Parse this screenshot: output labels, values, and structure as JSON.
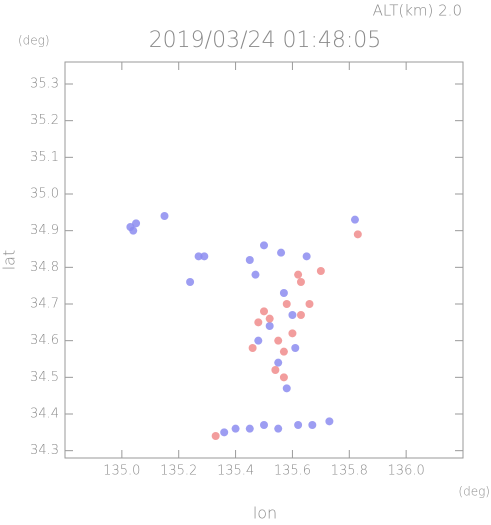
{
  "header_label": "ALT(km) 2.0",
  "chart_data": {
    "type": "scatter",
    "title": "2019/03/24 01:48:05",
    "x_label": "lon",
    "y_label": "lat",
    "x_unit": "(deg)",
    "y_unit": "(deg)",
    "xlim": [
      134.8,
      136.2
    ],
    "ylim": [
      34.28,
      35.36
    ],
    "xticks": [
      {
        "value": 135,
        "label": "135.0"
      },
      135.2,
      135.4,
      135.6,
      135.8,
      {
        "value": 136,
        "label": "136.0"
      }
    ],
    "yticks": [
      34.3,
      34.4,
      34.5,
      {
        "value": 34.6,
        "label": "34.6"
      },
      34.7,
      34.8,
      34.9,
      {
        "value": 35,
        "label": "35.0"
      },
      35.1,
      35.2,
      35.3
    ],
    "series": [
      {
        "color": "#8c8cf0",
        "x": [
          135.03,
          135.05,
          135.04,
          135.15,
          135.27,
          135.29,
          135.24,
          135.45,
          135.47,
          135.5,
          135.56,
          135.65,
          135.57,
          135.52,
          135.48,
          135.6,
          135.61,
          135.55,
          135.58,
          135.36,
          135.4,
          135.45,
          135.5,
          135.55,
          135.62,
          135.67,
          135.73,
          135.82
        ],
        "y": [
          34.91,
          34.92,
          34.9,
          34.94,
          34.83,
          34.83,
          34.76,
          34.82,
          34.78,
          34.86,
          34.84,
          34.83,
          34.73,
          34.64,
          34.6,
          34.67,
          34.58,
          34.54,
          34.47,
          34.35,
          34.36,
          34.36,
          34.37,
          34.36,
          34.37,
          34.37,
          34.38,
          34.93
        ]
      },
      {
        "color": "#f08c8c",
        "x": [
          135.62,
          135.63,
          135.7,
          135.5,
          135.52,
          135.58,
          135.63,
          135.55,
          135.57,
          135.6,
          135.54,
          135.57,
          135.48,
          135.83,
          135.46,
          135.33,
          135.66
        ],
        "y": [
          34.78,
          34.76,
          34.79,
          34.68,
          34.66,
          34.7,
          34.67,
          34.6,
          34.57,
          34.62,
          34.52,
          34.5,
          34.65,
          34.89,
          34.58,
          34.34,
          34.7
        ]
      }
    ]
  }
}
